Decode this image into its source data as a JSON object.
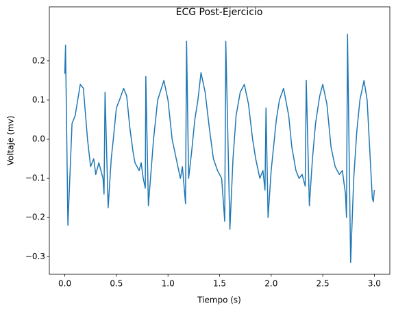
{
  "chart_data": {
    "type": "line",
    "title": "ECG Post-Ejercicio",
    "xlabel": "Tiempo (s)",
    "ylabel": "Voltaje (mv)",
    "x": [
      0.0,
      0.007,
      0.03,
      0.07,
      0.1,
      0.15,
      0.18,
      0.22,
      0.25,
      0.28,
      0.3,
      0.33,
      0.35,
      0.37,
      0.38,
      0.39,
      0.42,
      0.45,
      0.47,
      0.5,
      0.53,
      0.57,
      0.6,
      0.63,
      0.66,
      0.68,
      0.72,
      0.74,
      0.76,
      0.78,
      0.785,
      0.81,
      0.86,
      0.9,
      0.96,
      1.0,
      1.04,
      1.08,
      1.12,
      1.14,
      1.17,
      1.18,
      1.2,
      1.23,
      1.26,
      1.29,
      1.32,
      1.36,
      1.4,
      1.44,
      1.48,
      1.52,
      1.55,
      1.56,
      1.6,
      1.63,
      1.66,
      1.7,
      1.74,
      1.78,
      1.82,
      1.85,
      1.89,
      1.92,
      1.94,
      1.95,
      1.97,
      2.0,
      2.05,
      2.08,
      2.12,
      2.17,
      2.2,
      2.24,
      2.27,
      2.3,
      2.33,
      2.34,
      2.37,
      2.4,
      2.43,
      2.47,
      2.5,
      2.54,
      2.58,
      2.62,
      2.66,
      2.69,
      2.72,
      2.73,
      2.74,
      2.77,
      2.8,
      2.83,
      2.86,
      2.9,
      2.93,
      2.96,
      2.98,
      2.99,
      3.0
    ],
    "series": [
      {
        "name": "ECG",
        "color": "#1f77b4",
        "values": [
          0.167,
          0.24,
          -0.22,
          0.04,
          0.06,
          0.14,
          0.13,
          0.0,
          -0.07,
          -0.05,
          -0.09,
          -0.06,
          -0.08,
          -0.1,
          -0.14,
          0.12,
          -0.175,
          -0.05,
          0.0,
          0.08,
          0.1,
          0.13,
          0.11,
          0.03,
          -0.03,
          -0.06,
          -0.08,
          -0.06,
          -0.1,
          -0.125,
          0.16,
          -0.17,
          0.0,
          0.1,
          0.15,
          0.1,
          0.0,
          -0.05,
          -0.1,
          -0.07,
          -0.165,
          0.25,
          -0.1,
          -0.03,
          0.05,
          0.1,
          0.17,
          0.12,
          0.03,
          -0.05,
          -0.08,
          -0.1,
          -0.21,
          0.25,
          -0.23,
          -0.05,
          0.06,
          0.12,
          0.14,
          0.09,
          0.0,
          -0.05,
          -0.1,
          -0.08,
          -0.13,
          0.08,
          -0.2,
          -0.08,
          0.05,
          0.1,
          0.13,
          0.06,
          -0.02,
          -0.08,
          -0.1,
          -0.09,
          -0.12,
          0.15,
          -0.17,
          -0.05,
          0.04,
          0.11,
          0.14,
          0.09,
          -0.02,
          -0.07,
          -0.09,
          -0.08,
          -0.14,
          -0.2,
          0.268,
          -0.315,
          -0.1,
          0.02,
          0.1,
          0.15,
          0.1,
          -0.05,
          -0.15,
          -0.16,
          -0.13
        ]
      }
    ],
    "xlim": [
      -0.15,
      3.15
    ],
    "xticks": [
      {
        "value": 0,
        "label": "0.0"
      },
      0.5,
      {
        "value": 1,
        "label": "1.0"
      },
      1.5,
      {
        "value": 2,
        "label": "2.0"
      },
      2.5,
      {
        "value": 3,
        "label": "3.0"
      }
    ],
    "ylim": [
      -0.345,
      0.338
    ],
    "yticks": [
      {
        "value": -0.3,
        "label": "−0.3"
      },
      {
        "value": -0.2,
        "label": "−0.2"
      },
      {
        "value": -0.1,
        "label": "−0.1"
      },
      {
        "value": 0,
        "label": "0.0"
      },
      0.1,
      0.2
    ],
    "grid": false
  }
}
